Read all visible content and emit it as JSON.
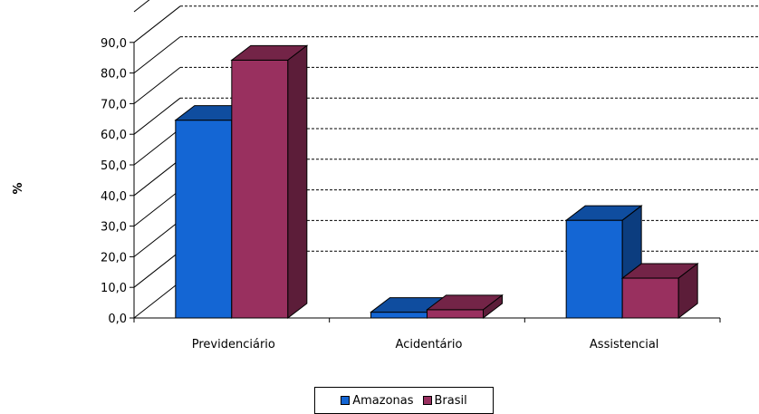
{
  "chart_data": {
    "type": "bar",
    "ylabel": "%",
    "xlabel": "",
    "ylim": [
      0,
      90
    ],
    "yticks": [
      "0,0",
      "10,0",
      "20,0",
      "30,0",
      "40,0",
      "50,0",
      "60,0",
      "70,0",
      "80,0",
      "90,0"
    ],
    "categories": [
      "Previdenciário",
      "Acidentário",
      "Assistencial"
    ],
    "series": [
      {
        "name": "Amazonas",
        "values": [
          64.6,
          1.9,
          31.9
        ],
        "color": "#1466D4"
      },
      {
        "name": "Brasil",
        "values": [
          84.2,
          2.7,
          13.0
        ],
        "color": "#99305F"
      }
    ],
    "grid": true,
    "legend_position": "bottom"
  }
}
